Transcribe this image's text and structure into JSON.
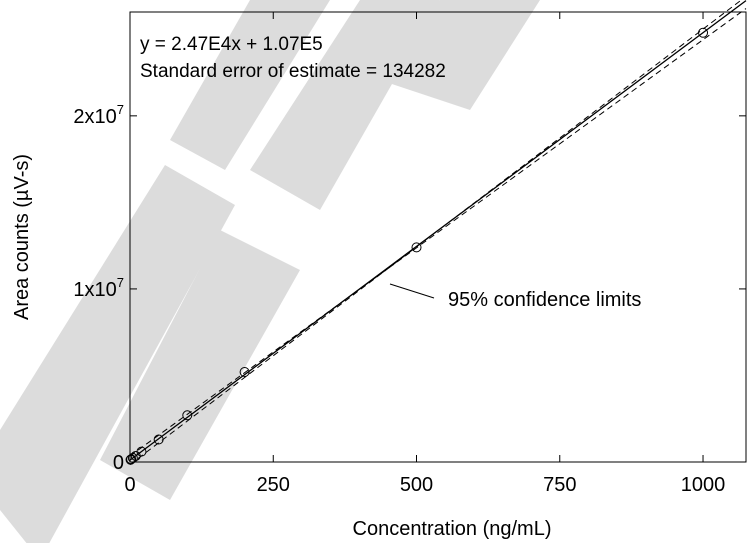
{
  "chart_data": {
    "type": "scatter",
    "xlabel": "Concentration (ng/mL)",
    "ylabel": "Area counts (µV-s)",
    "xlim": [
      0,
      1075
    ],
    "ylim": [
      0,
      26000000
    ],
    "x_ticks": [
      {
        "value": 0,
        "label": "0"
      },
      {
        "value": 250,
        "label": "250"
      },
      {
        "value": 500,
        "label": "500"
      },
      {
        "value": 750,
        "label": "750"
      },
      {
        "value": 1000,
        "label": "1000"
      }
    ],
    "y_ticks": [
      {
        "value": 0,
        "label": "0"
      },
      {
        "value": 10000000,
        "label": "1x10",
        "exp": "7"
      },
      {
        "value": 20000000,
        "label": "2x10",
        "exp": "7"
      }
    ],
    "series": [
      {
        "kind": "points",
        "marker": "open-circle",
        "x": [
          1,
          2,
          5,
          10,
          20,
          50,
          100,
          200,
          500,
          1000
        ],
        "y": [
          130000,
          160000,
          230000,
          350000,
          600000,
          1300000,
          2700000,
          5200000,
          12400000,
          24800000
        ]
      },
      {
        "kind": "regression-line",
        "style": "solid",
        "slope": 24700,
        "intercept": 107000
      },
      {
        "kind": "confidence-limit",
        "style": "dashed",
        "x": [
          0,
          1075
        ],
        "y": [
          -150000,
          26900000
        ]
      },
      {
        "kind": "confidence-limit",
        "style": "dashed",
        "x": [
          0,
          1075
        ],
        "y": [
          350000,
          26200000
        ]
      }
    ],
    "annotations": {
      "equation": "y = 2.47E4x + 1.07E5",
      "std_error": "Standard error of estimate = 134282",
      "confidence_label": "95% confidence limits"
    },
    "watermark": "IHD",
    "grid": false,
    "legend": "none"
  },
  "colors": {
    "ink": "#000000",
    "watermark": "#dcdcdc",
    "background": "#ffffff"
  }
}
